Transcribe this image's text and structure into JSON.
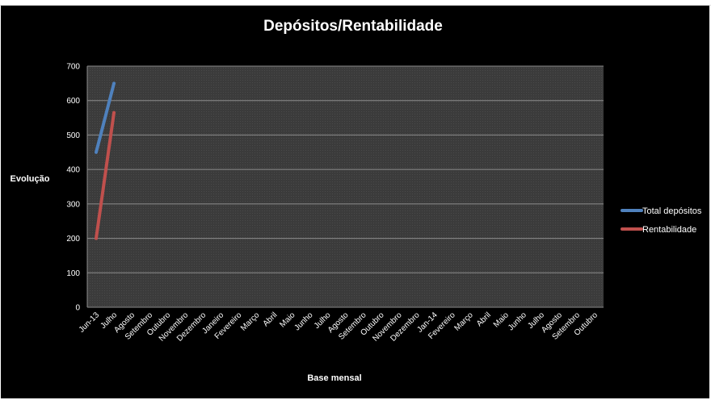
{
  "chart_data": {
    "type": "line",
    "title": "Depósitos/Rentabilidade",
    "xlabel": "Base mensal",
    "ylabel": "Evolução",
    "ylim": [
      0,
      700
    ],
    "yticks": [
      0,
      100,
      200,
      300,
      400,
      500,
      600,
      700
    ],
    "grid": true,
    "legend_position": "right",
    "categories": [
      "Jun-13",
      "Julho",
      "Agosto",
      "Setembro",
      "Outubro",
      "Novembro",
      "Dezembro",
      "Janeiro",
      "Fevereiro",
      "Março",
      "Abril",
      "Maio",
      "Junho",
      "Julho",
      "Agosto",
      "Setembro",
      "Outubro",
      "Novembro",
      "Dezembro",
      "Jan-14",
      "Fevereiro",
      "Março",
      "Abril",
      "Maio",
      "Junho",
      "Julho",
      "Agosto",
      "Setembro",
      "Outubro"
    ],
    "series": [
      {
        "name": "Total depósitos",
        "color": "#4f81bd",
        "values": [
          450,
          650,
          null,
          null,
          null,
          null,
          null,
          null,
          null,
          null,
          null,
          null,
          null,
          null,
          null,
          null,
          null,
          null,
          null,
          null,
          null,
          null,
          null,
          null,
          null,
          null,
          null,
          null,
          null
        ]
      },
      {
        "name": "Rentabilidade",
        "color": "#c0504d",
        "values": [
          200,
          565,
          null,
          null,
          null,
          null,
          null,
          null,
          null,
          null,
          null,
          null,
          null,
          null,
          null,
          null,
          null,
          null,
          null,
          null,
          null,
          null,
          null,
          null,
          null,
          null,
          null,
          null,
          null
        ]
      }
    ],
    "colors": {
      "background": "#000000",
      "plot_background": "#3a3a3a",
      "gridline": "#8c8c8c",
      "text": "#ffffff"
    }
  }
}
